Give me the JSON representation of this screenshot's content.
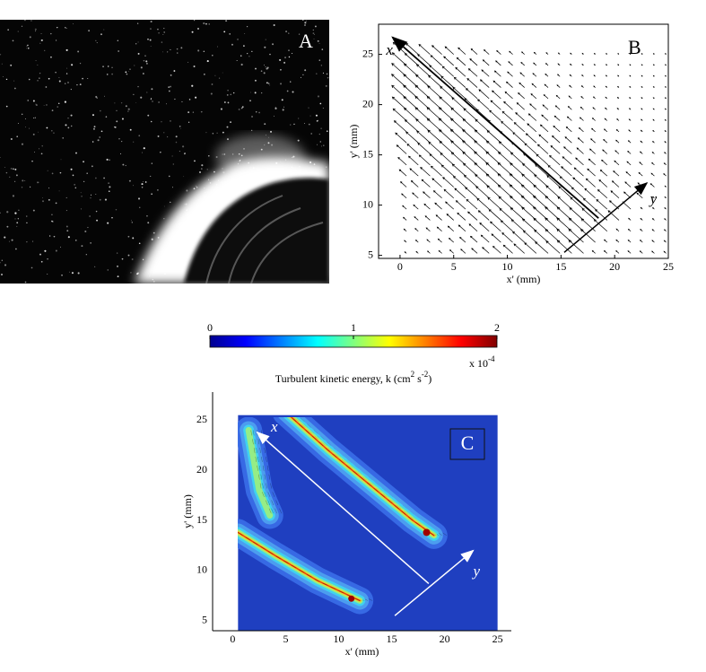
{
  "chart_data": [
    {
      "type": "image",
      "panel_label": "A"
    },
    {
      "type": "quiver",
      "panel_label": "B",
      "xlabel": "x' (mm)",
      "ylabel": "y' (mm)",
      "xlim": [
        -2,
        25
      ],
      "ylim": [
        4.7,
        28
      ],
      "xticks": [
        0,
        5,
        10,
        15,
        20,
        25
      ],
      "yticks": [
        5,
        10,
        15,
        20,
        25
      ],
      "axis_annotations": [
        "x",
        "y"
      ]
    },
    {
      "type": "contour",
      "panel_label": "C",
      "title": [
        "Turbulent kinetic energy, k (cm",
        {
          "sup": "2"
        },
        " s",
        {
          "sup": "-2"
        },
        ")"
      ],
      "colorbar": {
        "clim": [
          0,
          2
        ],
        "ticks": [
          0,
          1,
          2
        ],
        "multiplier": [
          "x 10",
          {
            "sup": "-4"
          }
        ]
      },
      "xlabel": "x' (mm)",
      "ylabel": "y' (mm)",
      "xlim": [
        -1.9,
        26.3
      ],
      "ylim": [
        4,
        27.8
      ],
      "xticks": [
        0,
        5,
        10,
        15,
        20,
        25
      ],
      "yticks": [
        5,
        10,
        15,
        20,
        25
      ],
      "axis_annotations": [
        "x",
        "y"
      ]
    }
  ]
}
